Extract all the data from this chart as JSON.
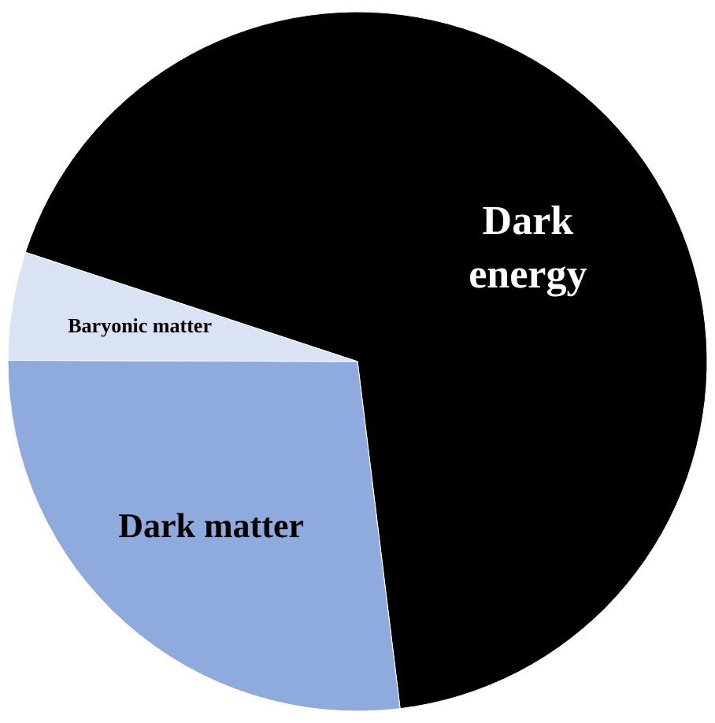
{
  "chart_data": {
    "type": "pie",
    "categories": [
      "Dark energy",
      "Dark matter",
      "Baryonic matter"
    ],
    "values": [
      68,
      27,
      5
    ],
    "colors": [
      "#000000",
      "#8faadc",
      "#dae3f3"
    ]
  }
}
